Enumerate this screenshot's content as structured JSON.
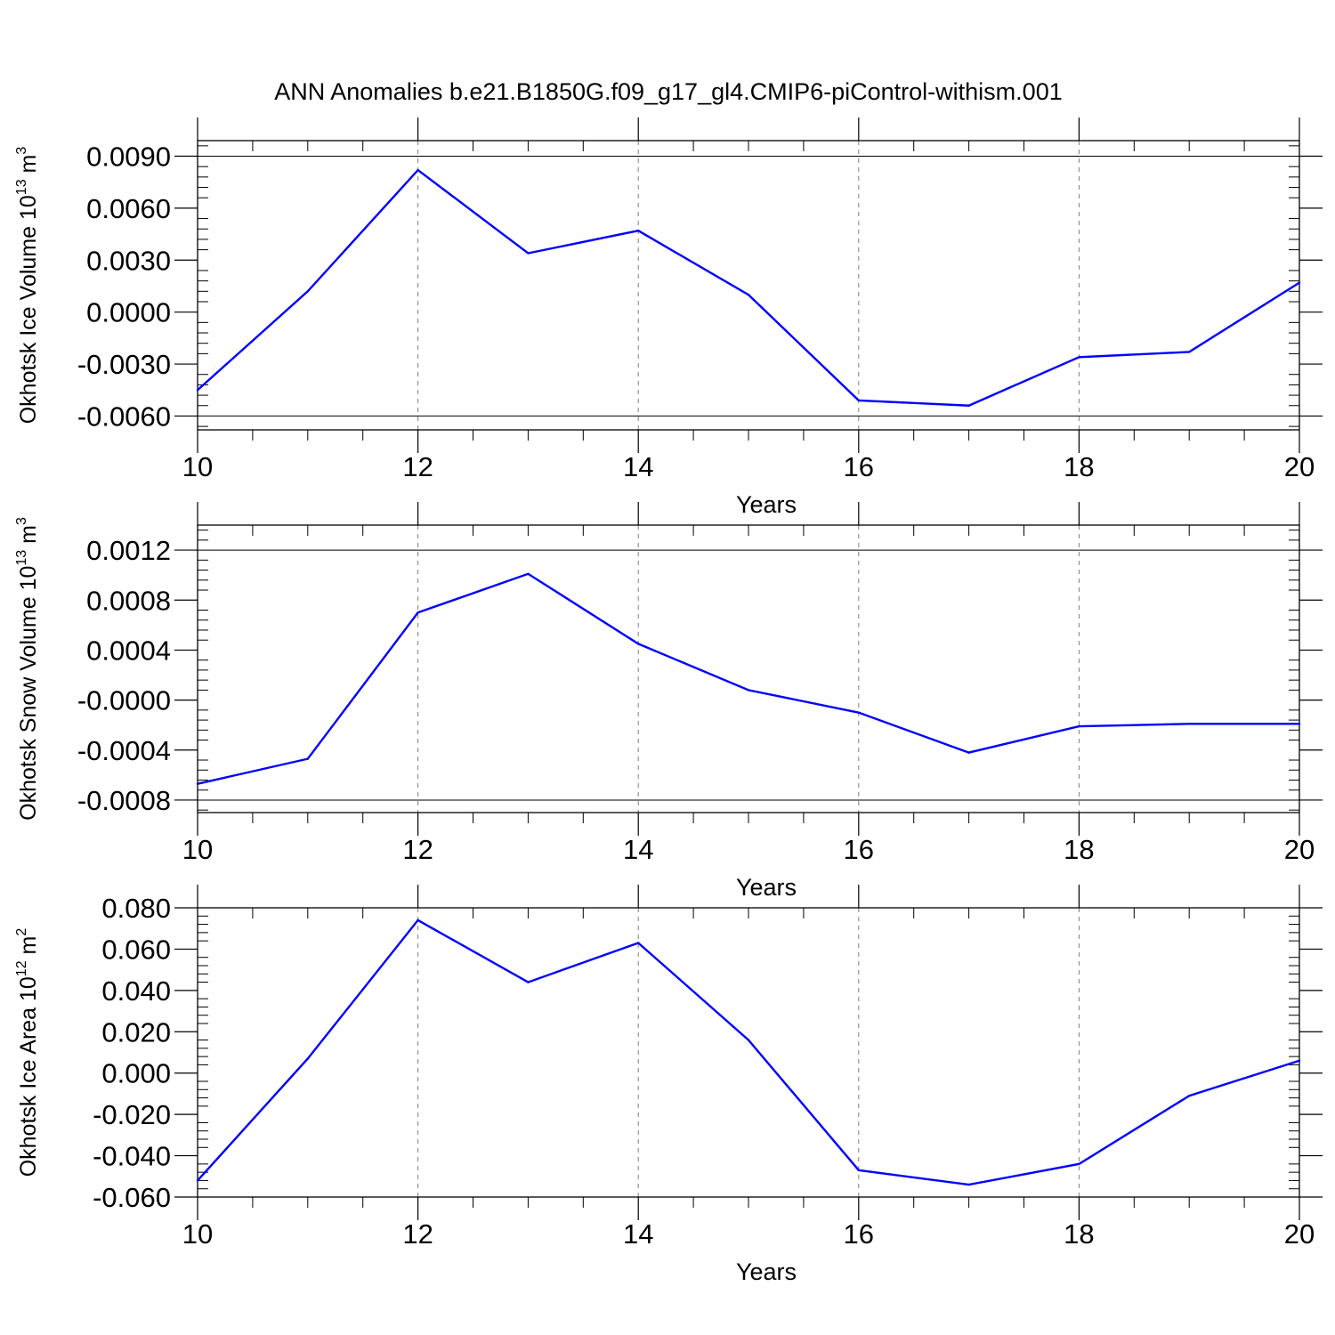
{
  "title": "ANN Anomalies b.e21.B1850G.f09_g17_gl4.CMIP6-piControl-withism.001",
  "colors": {
    "line": "#0000ff",
    "axis": "#000000",
    "grid": "#7f7f7f"
  },
  "chart_data": [
    {
      "type": "line",
      "ylabel_main": "Okhotsk Ice Volume 10",
      "ylabel_exp": "13",
      "ylabel_tail": " m",
      "ylabel_unit_exp": "3",
      "xlabel": "Years",
      "xlim": [
        10,
        20
      ],
      "ylim": [
        -0.0068,
        0.0099
      ],
      "xticks": [
        10,
        12,
        14,
        16,
        18,
        20
      ],
      "xtick_labels": [
        "10",
        "12",
        "14",
        "16",
        "18",
        "20"
      ],
      "yticks": [
        -0.006,
        -0.003,
        0.0,
        0.003,
        0.006,
        0.009
      ],
      "ytick_labels": [
        "-0.0060",
        "-0.0030",
        "0.0000",
        "0.0030",
        "0.0060",
        "0.0090"
      ],
      "x": [
        10,
        11,
        12,
        13,
        14,
        15,
        16,
        17,
        18,
        19,
        20
      ],
      "values": [
        -0.0045,
        0.0012,
        0.0082,
        0.0034,
        0.0047,
        0.001,
        -0.0051,
        -0.0054,
        -0.0026,
        -0.0023,
        0.0017
      ]
    },
    {
      "type": "line",
      "ylabel_main": "Okhotsk Snow Volume 10",
      "ylabel_exp": "13",
      "ylabel_tail": " m",
      "ylabel_unit_exp": "3",
      "xlabel": "Years",
      "xlim": [
        10,
        20
      ],
      "ylim": [
        -0.0009,
        0.0014
      ],
      "xticks": [
        10,
        12,
        14,
        16,
        18,
        20
      ],
      "xtick_labels": [
        "10",
        "12",
        "14",
        "16",
        "18",
        "20"
      ],
      "yticks": [
        -0.0008,
        -0.0004,
        0.0,
        0.0004,
        0.0008,
        0.0012
      ],
      "ytick_labels": [
        "-0.0008",
        "-0.0004",
        "-0.0000",
        "0.0004",
        "0.0008",
        "0.0012"
      ],
      "x": [
        10,
        11,
        12,
        13,
        14,
        15,
        16,
        17,
        18,
        19,
        20
      ],
      "values": [
        -0.00067,
        -0.00047,
        0.0007,
        0.00101,
        0.00045,
        8e-05,
        -0.0001,
        -0.00042,
        -0.00021,
        -0.00019,
        -0.00019
      ]
    },
    {
      "type": "line",
      "ylabel_main": "Okhotsk Ice Area 10",
      "ylabel_exp": "12",
      "ylabel_tail": " m",
      "ylabel_unit_exp": "2",
      "xlabel": "Years",
      "xlim": [
        10,
        20
      ],
      "ylim": [
        -0.06,
        0.08
      ],
      "xticks": [
        10,
        12,
        14,
        16,
        18,
        20
      ],
      "xtick_labels": [
        "10",
        "12",
        "14",
        "16",
        "18",
        "20"
      ],
      "yticks": [
        -0.06,
        -0.04,
        -0.02,
        0.0,
        0.02,
        0.04,
        0.06,
        0.08
      ],
      "ytick_labels": [
        "-0.060",
        "-0.040",
        "-0.020",
        "0.000",
        "0.020",
        "0.040",
        "0.060",
        "0.080"
      ],
      "x": [
        10,
        11,
        12,
        13,
        14,
        15,
        16,
        17,
        18,
        19,
        20
      ],
      "values": [
        -0.052,
        0.007,
        0.074,
        0.044,
        0.063,
        0.016,
        -0.047,
        -0.054,
        -0.044,
        -0.011,
        0.006
      ]
    }
  ]
}
